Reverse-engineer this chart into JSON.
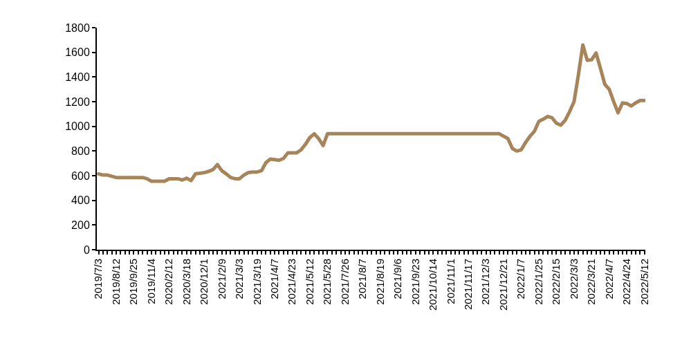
{
  "chart_data": {
    "type": "line",
    "categories": [
      "2019/7/3",
      null,
      null,
      null,
      "2019/8/12",
      null,
      null,
      null,
      "2019/9/25",
      null,
      null,
      null,
      "2019/11/4",
      null,
      null,
      null,
      "2020/2/12",
      null,
      null,
      null,
      "2020/3/18",
      null,
      null,
      null,
      "2020/12/1",
      null,
      null,
      null,
      "2021/2/9",
      null,
      null,
      null,
      "2021/3/3",
      null,
      null,
      null,
      "2021/3/19",
      null,
      null,
      null,
      "2021/4/7",
      null,
      null,
      null,
      "2021/4/23",
      null,
      null,
      null,
      "2021/5/12",
      null,
      null,
      null,
      "2021/5/28",
      null,
      null,
      null,
      "2021/7/26",
      null,
      null,
      null,
      "2021/8/7",
      null,
      null,
      null,
      "2021/8/19",
      null,
      null,
      null,
      "2021/9/6",
      null,
      null,
      null,
      "2021/9/23",
      null,
      null,
      null,
      "2021/10/14",
      null,
      null,
      null,
      "2021/11/1",
      null,
      null,
      null,
      "2021/11/17",
      null,
      null,
      null,
      "2021/12/3",
      null,
      null,
      null,
      "2021/12/21",
      null,
      null,
      null,
      "2022/1/7",
      null,
      null,
      null,
      "2022/1/25",
      null,
      null,
      null,
      "2022/2/15",
      null,
      null,
      null,
      "2022/3/3",
      null,
      null,
      null,
      "2022/3/21",
      null,
      null,
      null,
      "2022/4/7",
      null,
      null,
      null,
      "2022/4/24",
      null,
      null,
      null,
      "2022/5/12"
    ],
    "series": [
      {
        "color": "#a8845a",
        "values": [
          615,
          605,
          605,
          595,
          585,
          585,
          585,
          585,
          585,
          585,
          585,
          575,
          555,
          555,
          555,
          555,
          575,
          575,
          575,
          565,
          580,
          560,
          615,
          620,
          625,
          635,
          650,
          690,
          640,
          615,
          585,
          575,
          575,
          605,
          625,
          630,
          630,
          640,
          705,
          735,
          730,
          725,
          740,
          785,
          785,
          785,
          810,
          855,
          910,
          940,
          900,
          845,
          940,
          940,
          940,
          940,
          940,
          940,
          940,
          940,
          940,
          940,
          940,
          940,
          940,
          940,
          940,
          940,
          940,
          940,
          940,
          940,
          940,
          940,
          940,
          940,
          940,
          940,
          940,
          940,
          940,
          940,
          940,
          940,
          940,
          940,
          940,
          940,
          940,
          940,
          940,
          940,
          920,
          900,
          820,
          800,
          810,
          870,
          920,
          960,
          1040,
          1058,
          1080,
          1070,
          1025,
          1010,
          1050,
          1120,
          1200,
          1420,
          1660,
          1535,
          1540,
          1595,
          1470,
          1340,
          1300,
          1200,
          1110,
          1190,
          1185,
          1165,
          1190,
          1210,
          1210
        ]
      }
    ],
    "ylim": [
      0,
      1800
    ],
    "yticks": [
      0,
      200,
      400,
      600,
      800,
      1000,
      1200,
      1400,
      1600,
      1800
    ],
    "marker": "none",
    "line_style": "solid"
  }
}
